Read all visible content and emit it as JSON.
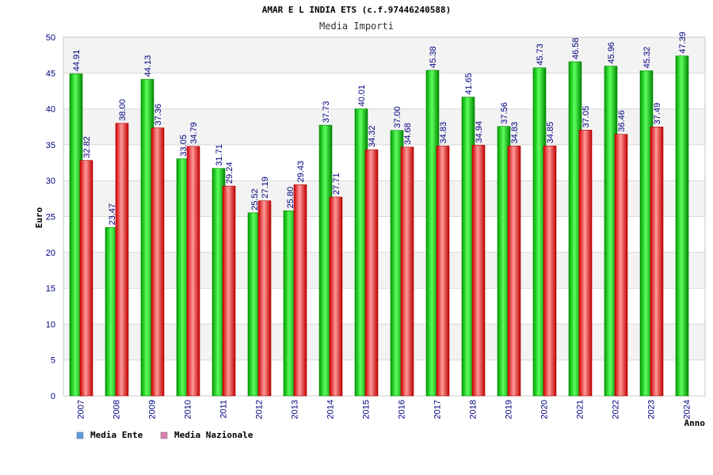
{
  "chart_data": {
    "type": "bar",
    "title": "AMAR E L INDIA ETS (c.f.97446240588)",
    "subtitle": "Media Importi",
    "ylabel": "Euro",
    "xlabel": "Anno",
    "ylim": [
      0,
      50
    ],
    "yticks": [
      0,
      5,
      10,
      15,
      20,
      25,
      30,
      35,
      40,
      45,
      50
    ],
    "grid": true,
    "legend_position": "bottom-left",
    "categories": [
      "2007",
      "2008",
      "2009",
      "2010",
      "2011",
      "2012",
      "2013",
      "2014",
      "2015",
      "2016",
      "2017",
      "2018",
      "2019",
      "2020",
      "2021",
      "2022",
      "2023",
      "2024"
    ],
    "series": [
      {
        "name": "Media Ente",
        "color": "#00c000",
        "legend_color": "#5aa0e6",
        "values": [
          44.91,
          23.47,
          44.13,
          33.05,
          31.71,
          25.52,
          25.8,
          37.73,
          40.01,
          37.0,
          45.38,
          41.65,
          37.56,
          45.73,
          46.58,
          45.96,
          45.32,
          47.39
        ],
        "labels": [
          "44.91",
          "23.47",
          "44.13",
          "33.05",
          "31.71",
          "25.52",
          "25.80",
          "37.73",
          "40.01",
          "37.00",
          "45.38",
          "41.65",
          "37.56",
          "45.73",
          "46.58",
          "45.96",
          "45.32",
          "47.39"
        ]
      },
      {
        "name": "Media Nazionale",
        "color": "#e02020",
        "legend_color": "#e080b0",
        "values": [
          32.82,
          38.0,
          37.36,
          34.79,
          29.24,
          27.19,
          29.43,
          27.71,
          34.32,
          34.68,
          34.83,
          34.94,
          34.83,
          34.85,
          37.05,
          36.46,
          37.49,
          null
        ],
        "labels": [
          "32.82",
          "38.00",
          "37.36",
          "34.79",
          "29.24",
          "27.19",
          "29.43",
          "27.71",
          "34.32",
          "34.68",
          "34.83",
          "34.94",
          "34.83",
          "34.85",
          "37.05",
          "36.46",
          "37.49",
          ""
        ]
      }
    ]
  }
}
